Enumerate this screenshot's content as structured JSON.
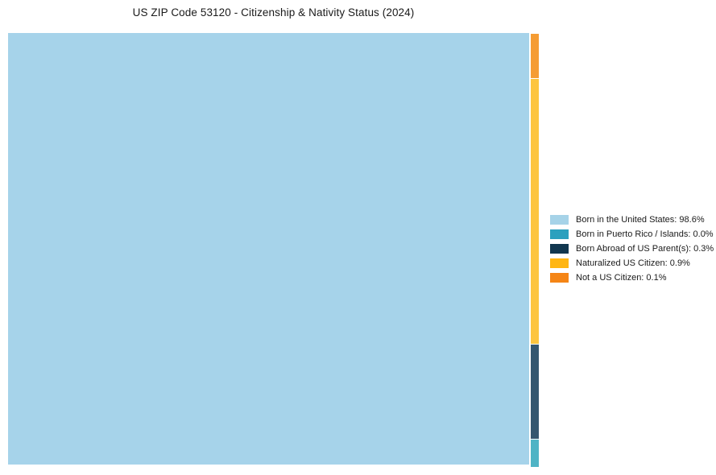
{
  "title": "US ZIP Code 53120 - Citizenship & Nativity Status (2024)",
  "chart_data": {
    "type": "treemap",
    "title": "US ZIP Code 53120 - Citizenship & Nativity Status (2024)",
    "categories": [
      "Born in the United States",
      "Born in Puerto Rico / Islands",
      "Born Abroad of US Parent(s)",
      "Naturalized US Citizen",
      "Not a US Citizen"
    ],
    "values": [
      98.6,
      0.0,
      0.3,
      0.9,
      0.1
    ],
    "unit": "%",
    "legend_position": "right",
    "layout": "one dominant rectangle left, remaining categories stacked in a thin right column"
  },
  "treemap": {
    "rects": [
      {
        "name": "Born in the United States",
        "value_pct": 98.6,
        "color": "#A6D3EA"
      },
      {
        "name": "Not a US Citizen",
        "value_pct": 0.1,
        "color": "#F59C33"
      },
      {
        "name": "Naturalized US Citizen",
        "value_pct": 0.9,
        "color": "#FDC53F"
      },
      {
        "name": "Born Abroad of US Parent(s)",
        "value_pct": 0.3,
        "color": "#35576F"
      },
      {
        "name": "Born in Puerto Rico / Islands",
        "value_pct": 0.0,
        "color": "#4FB4C5"
      }
    ]
  },
  "legend": {
    "items": [
      {
        "label": "Born in the United States: 98.6%",
        "color": "#A6D3E8"
      },
      {
        "label": "Born in Puerto Rico / Islands: 0.0%",
        "color": "#2CA0BE"
      },
      {
        "label": "Born Abroad of US Parent(s): 0.3%",
        "color": "#11374F"
      },
      {
        "label": "Naturalized US Citizen: 0.9%",
        "color": "#FFB613"
      },
      {
        "label": "Not a US Citizen: 0.1%",
        "color": "#F58516"
      }
    ]
  }
}
